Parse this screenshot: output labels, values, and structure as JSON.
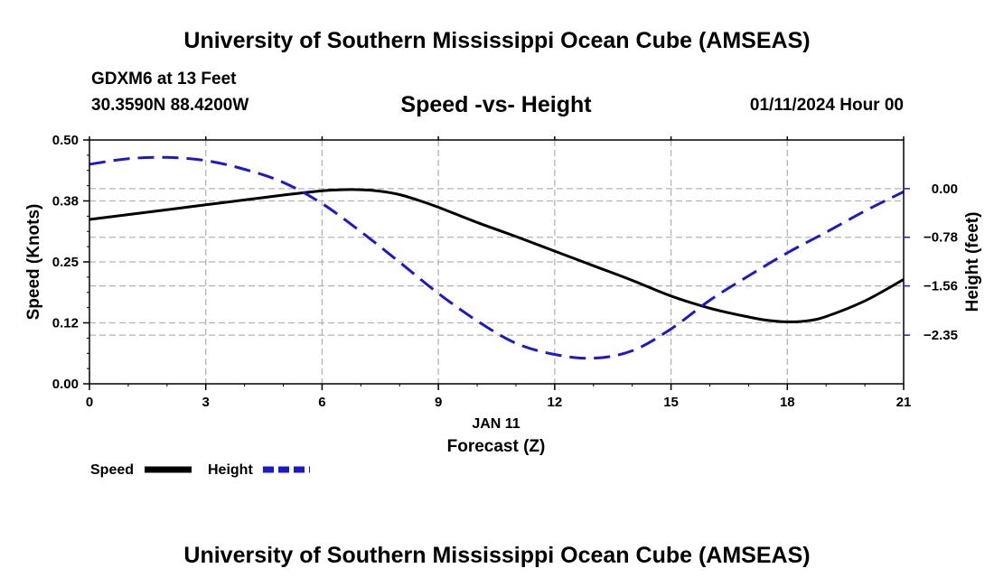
{
  "page": {
    "top_title": "University of Southern Mississippi Ocean Cube (AMSEAS)",
    "bottom_title": "University of Southern Mississippi Ocean Cube (AMSEAS)",
    "station": "GDXM6 at 13 Feet",
    "location": "30.3590N  88.4200W",
    "datetime": "01/11/2024 Hour 00"
  },
  "chart_data": {
    "type": "line",
    "title": "Speed -vs- Height",
    "xlabel": "Forecast (Z)",
    "x_date_label": "JAN 11",
    "ylabel_left": "Speed (Knots)",
    "ylabel_right": "Height (feet)",
    "xlim": [
      0,
      21
    ],
    "ylim_left": [
      0,
      0.5
    ],
    "ylim_right": [
      -3.13,
      0.78
    ],
    "x_ticks": [
      0,
      3,
      6,
      9,
      12,
      15,
      18,
      21
    ],
    "x_tick_labels": [
      "0",
      "3",
      "6",
      "9",
      "12",
      "15",
      "18",
      "21"
    ],
    "y_left_ticks": [
      0,
      0.125,
      0.25,
      0.375,
      0.5
    ],
    "y_left_tick_labels": [
      "0.00",
      "0.12",
      "0.25",
      "0.38",
      "0.50"
    ],
    "y_right_ticks": [
      0.0,
      -0.78,
      -1.56,
      -2.35
    ],
    "y_right_tick_labels": [
      "0.00",
      "−0.78",
      "−1.56",
      "−2.35"
    ],
    "grid": true,
    "series": [
      {
        "name": "Speed",
        "axis": "left",
        "color": "#000000",
        "style": "solid",
        "x": [
          0,
          1,
          2,
          3,
          4,
          5,
          6,
          6.5,
          7,
          7.5,
          8,
          8.5,
          9,
          10,
          11,
          12,
          13,
          14,
          15,
          16,
          17,
          17.5,
          18,
          18.5,
          19,
          20,
          21
        ],
        "values": [
          0.337,
          0.347,
          0.357,
          0.367,
          0.377,
          0.387,
          0.396,
          0.398,
          0.398,
          0.395,
          0.388,
          0.376,
          0.362,
          0.331,
          0.302,
          0.272,
          0.242,
          0.212,
          0.18,
          0.155,
          0.137,
          0.13,
          0.127,
          0.129,
          0.138,
          0.17,
          0.214
        ]
      },
      {
        "name": "Height",
        "axis": "right",
        "color": "#1a1acc",
        "style": "dashed",
        "x": [
          0,
          1,
          2,
          3,
          4,
          5,
          6,
          7,
          8,
          9,
          10,
          11,
          12,
          13,
          14,
          15,
          16,
          17,
          18,
          19,
          20,
          21
        ],
        "values": [
          0.39,
          0.48,
          0.5,
          0.45,
          0.31,
          0.1,
          -0.24,
          -0.69,
          -1.18,
          -1.68,
          -2.12,
          -2.48,
          -2.66,
          -2.72,
          -2.6,
          -2.25,
          -1.79,
          -1.4,
          -1.03,
          -0.7,
          -0.36,
          -0.05
        ]
      }
    ],
    "legend": {
      "position": "bottom-left",
      "entries": [
        "Speed",
        "Height"
      ]
    }
  }
}
